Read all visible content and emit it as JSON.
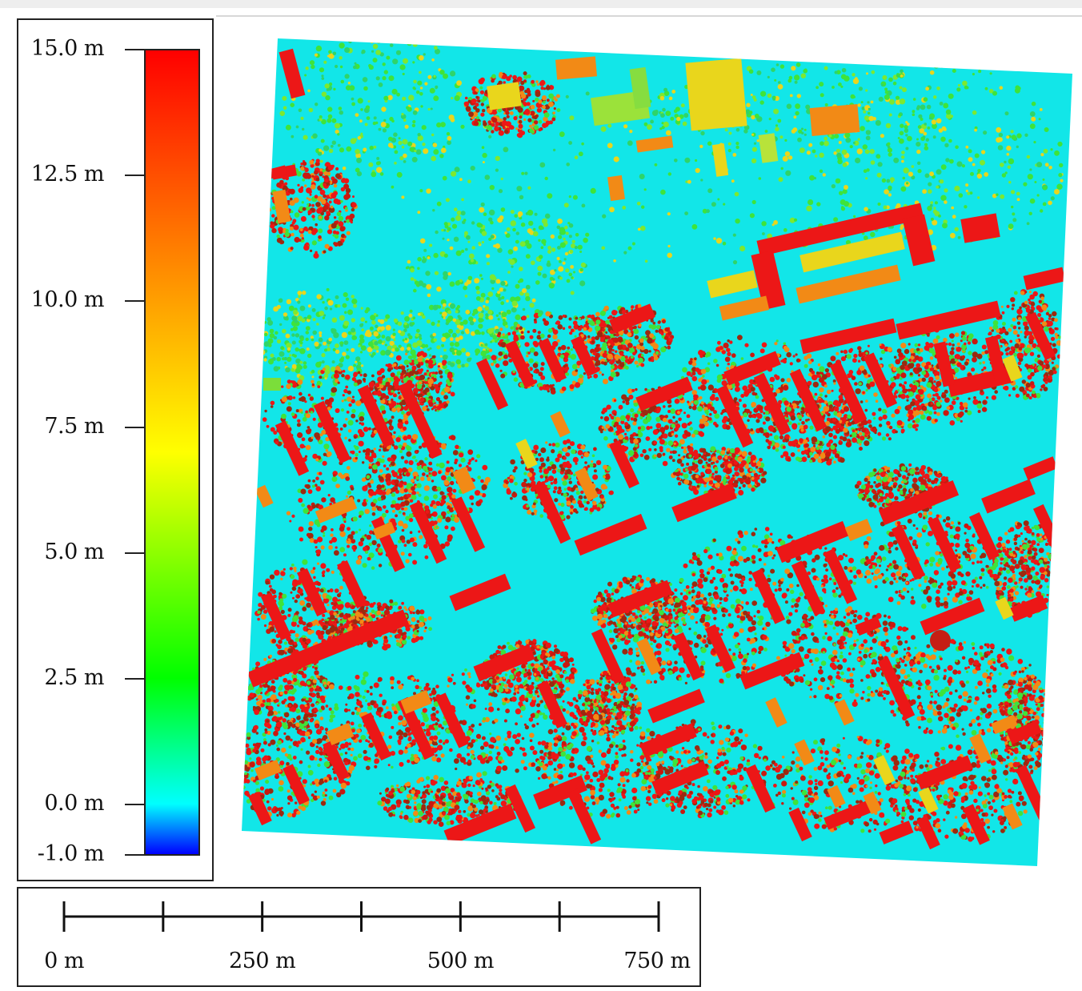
{
  "legend": {
    "ticks": [
      {
        "label": "15.0 m",
        "value": 15.0
      },
      {
        "label": "12.5 m",
        "value": 12.5
      },
      {
        "label": "10.0 m",
        "value": 10.0
      },
      {
        "label": "7.5 m",
        "value": 7.5
      },
      {
        "label": "5.0 m",
        "value": 5.0
      },
      {
        "label": "2.5 m",
        "value": 2.5
      },
      {
        "label": "0.0 m",
        "value": 0.0
      },
      {
        "label": "-1.0 m",
        "value": -1.0
      }
    ],
    "range": [
      -1.0,
      15.0
    ],
    "colormap": [
      "#0000ff",
      "#00ffff",
      "#00ff00",
      "#ffff00",
      "#ff8000",
      "#ff0000"
    ],
    "colormap_stops": [
      -1.0,
      0.0,
      2.5,
      7.0,
      11.0,
      15.0
    ]
  },
  "scale_bar": {
    "labels": [
      {
        "text": "0 m",
        "value": 0
      },
      {
        "text": "250 m",
        "value": 250
      },
      {
        "text": "500 m",
        "value": 500
      },
      {
        "text": "750 m",
        "value": 750
      }
    ],
    "max_value": 750,
    "divisions": 6
  },
  "map": {
    "colors": {
      "ground": "#12e6e8",
      "vegetation": "#3fe33a",
      "building_high": "#ec1717",
      "building_mid": "#f28a16",
      "building_low": "#e9d61c"
    }
  }
}
